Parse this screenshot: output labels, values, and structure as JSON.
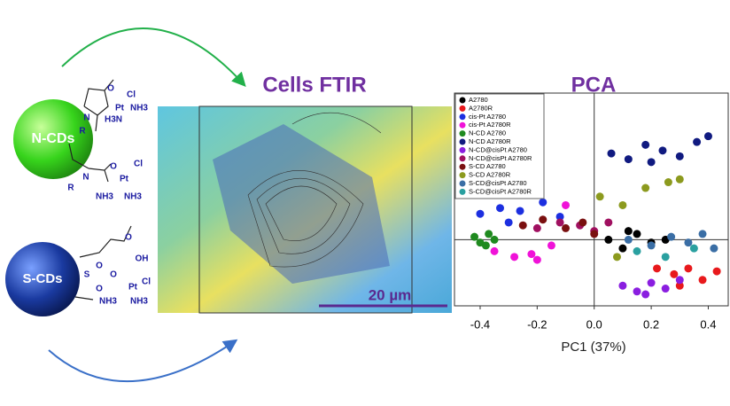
{
  "diagram": {
    "nodes": [
      {
        "label": "N-CDs"
      },
      {
        "label": "S-CDs"
      }
    ],
    "panel_title": "Cells FTIR",
    "scale_bar": "20 µm",
    "chem_labels": [
      "O",
      "Cl",
      "Pt",
      "NH3",
      "N",
      "R",
      "H3N",
      "O",
      "Cl",
      "N",
      "Pt",
      "R",
      "NH3",
      "NH3",
      "OH",
      "O",
      "S",
      "O",
      "O",
      "Pt",
      "Cl",
      "NH3",
      "NH3",
      "O"
    ]
  },
  "chart_data": {
    "type": "scatter",
    "title": "PCA",
    "x_label": "PC1 (37%)",
    "xlim": [
      -0.49,
      0.47
    ],
    "ylim": [
      -0.23,
      0.51
    ],
    "xticks": [
      -0.4,
      -0.2,
      {
        "value": 0,
        "label": "0.0"
      },
      0.2,
      0.4
    ],
    "series": [
      {
        "name": "A2780",
        "color": "#000000",
        "x": [
          0.05,
          0.1,
          0.15,
          0.2,
          0.25,
          0.12
        ],
        "y": [
          0.0,
          -0.03,
          0.02,
          -0.01,
          0.0,
          0.03
        ]
      },
      {
        "name": "A2780R",
        "color": "#e8191c",
        "x": [
          0.22,
          0.28,
          0.33,
          0.38,
          0.43,
          0.3
        ],
        "y": [
          -0.1,
          -0.12,
          -0.1,
          -0.14,
          -0.11,
          -0.16
        ]
      },
      {
        "name": "cis-Pt A2780",
        "color": "#1c2fe0",
        "x": [
          -0.4,
          -0.33,
          -0.26,
          -0.18,
          -0.12,
          -0.3
        ],
        "y": [
          0.09,
          0.11,
          0.1,
          0.13,
          0.08,
          0.06
        ]
      },
      {
        "name": "cis-Pt A2780R",
        "color": "#f012d8",
        "x": [
          -0.35,
          -0.28,
          -0.22,
          -0.15,
          -0.1,
          -0.2
        ],
        "y": [
          -0.04,
          -0.06,
          -0.05,
          -0.02,
          0.12,
          -0.07
        ]
      },
      {
        "name": "N-CD A2780",
        "color": "#1f8a1f",
        "x": [
          -0.42,
          -0.4,
          -0.37,
          -0.35,
          -0.38
        ],
        "y": [
          0.01,
          -0.01,
          0.02,
          0.0,
          -0.02
        ]
      },
      {
        "name": "N-CD A2780R",
        "color": "#101a80",
        "x": [
          0.06,
          0.12,
          0.18,
          0.24,
          0.3,
          0.36,
          0.4,
          0.2
        ],
        "y": [
          0.3,
          0.28,
          0.33,
          0.31,
          0.29,
          0.34,
          0.36,
          0.27
        ]
      },
      {
        "name": "N-CD@cisPt A2780",
        "color": "#8a1ee0",
        "x": [
          0.1,
          0.15,
          0.2,
          0.25,
          0.3,
          0.18
        ],
        "y": [
          -0.16,
          -0.18,
          -0.15,
          -0.17,
          -0.14,
          -0.19
        ]
      },
      {
        "name": "N-CD@cisPt A2780R",
        "color": "#a01060",
        "x": [
          -0.2,
          -0.12,
          -0.05,
          0.0,
          0.05
        ],
        "y": [
          0.04,
          0.06,
          0.05,
          0.03,
          0.06
        ]
      },
      {
        "name": "S-CD A2780",
        "color": "#7a1010",
        "x": [
          -0.25,
          -0.18,
          -0.1,
          -0.04,
          0.0
        ],
        "y": [
          0.05,
          0.07,
          0.04,
          0.06,
          0.02
        ]
      },
      {
        "name": "S-CD A2780R",
        "color": "#8c9a1e",
        "x": [
          0.02,
          0.1,
          0.18,
          0.26,
          0.3,
          0.08
        ],
        "y": [
          0.15,
          0.12,
          0.18,
          0.2,
          0.21,
          -0.06
        ]
      },
      {
        "name": "S-CD@cisPt A2780",
        "color": "#3a6ea5",
        "x": [
          0.12,
          0.2,
          0.27,
          0.33,
          0.38,
          0.42
        ],
        "y": [
          0.0,
          -0.02,
          0.01,
          -0.01,
          0.02,
          -0.03
        ]
      },
      {
        "name": "S-CD@cisPt A2780R",
        "color": "#2aa0a0",
        "x": [
          0.15,
          0.25,
          0.35
        ],
        "y": [
          -0.04,
          -0.06,
          -0.03
        ]
      }
    ]
  }
}
